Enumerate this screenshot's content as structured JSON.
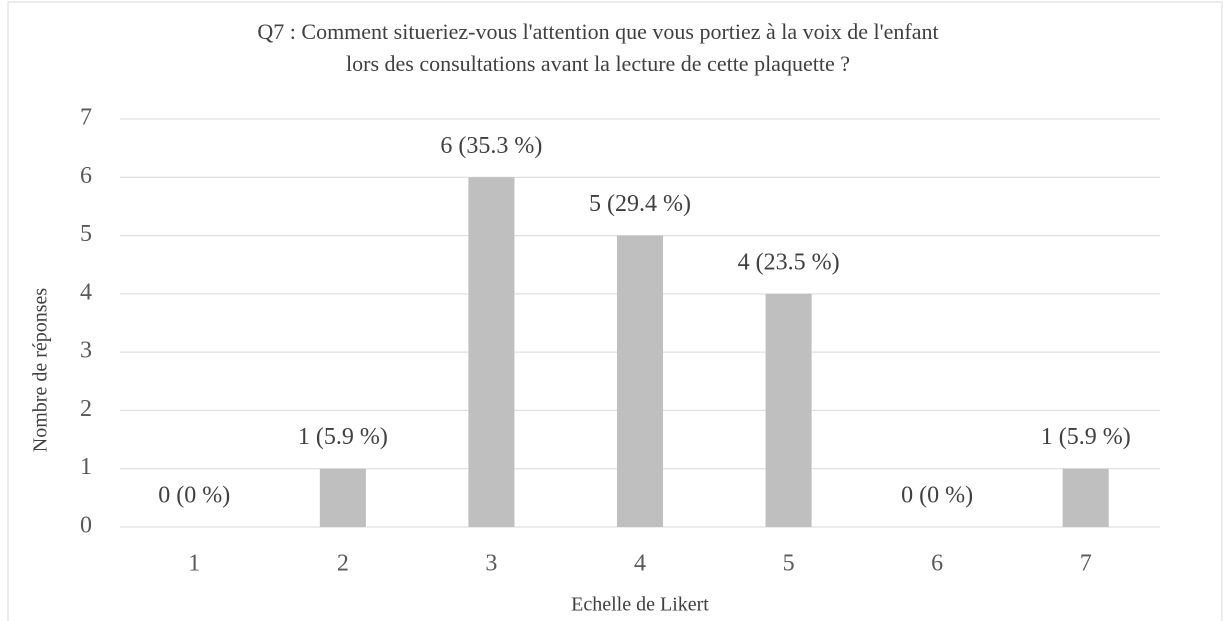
{
  "chart_data": {
    "type": "bar",
    "title": [
      "Q7 : Comment situeriez-vous l'attention que vous portiez à la voix de l'enfant",
      "lors des consultations avant la lecture de cette plaquette ?"
    ],
    "categories": [
      "1",
      "2",
      "3",
      "4",
      "5",
      "6",
      "7"
    ],
    "values": [
      0,
      1,
      6,
      5,
      4,
      0,
      1
    ],
    "value_labels": [
      "0 (0 %)",
      "1 (5.9 %)",
      "6 (35.3 %)",
      "5 (29.4 %)",
      "4 (23.5 %)",
      "0 (0 %)",
      "1 (5.9 %)"
    ],
    "color": "#bfbfbf",
    "ylim": [
      0,
      7
    ],
    "yticks": [
      0,
      1,
      2,
      3,
      4,
      5,
      6,
      7
    ],
    "grid": true,
    "xlabel": "Echelle de Likert",
    "ylabel": "Nombre de réponses"
  }
}
